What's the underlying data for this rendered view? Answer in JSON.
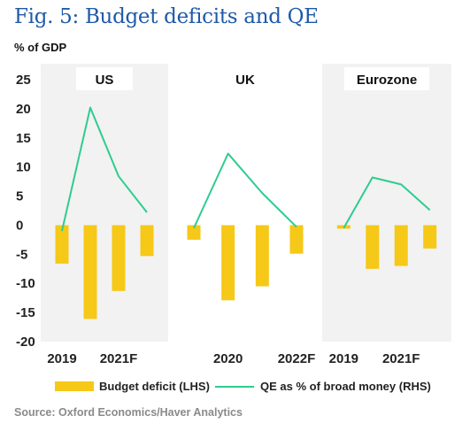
{
  "title": "Fig. 5: Budget deficits and QE",
  "unit_label": "% of GDP",
  "source": "Source: Oxford Economics/Haver Analytics",
  "colors": {
    "bar": "#f6c817",
    "line": "#2ecc8f",
    "panel_bg": "#f2f2f2",
    "title": "#1e5aa8"
  },
  "chart_data": {
    "type": "bar",
    "ylim": [
      -20,
      25
    ],
    "yticks": [
      25,
      20,
      15,
      10,
      5,
      0,
      -5,
      -10,
      -15,
      -20
    ],
    "ytick_labels": [
      "25",
      "20",
      "15",
      "10",
      "5",
      "0",
      "-5",
      "-10",
      "-15",
      "-20"
    ],
    "grid": false,
    "legend": "bottom",
    "legend_labels": {
      "bar": "Budget deficit (LHS)",
      "line": "QE as % of broad money (RHS)"
    },
    "panels": [
      {
        "label": "US",
        "categories": [
          "2019",
          "2020",
          "2021F",
          "2022F"
        ],
        "tick_labels": [
          "2019",
          "",
          "2021F",
          ""
        ],
        "budget_deficit": [
          -6.6,
          -16.1,
          -11.3,
          -5.3
        ],
        "qe": [
          -1.0,
          20.2,
          8.4,
          2.2
        ]
      },
      {
        "label": "UK",
        "categories": [
          "2019",
          "2020",
          "2021F",
          "2022F"
        ],
        "tick_labels": [
          "",
          "2020",
          "",
          "2022F"
        ],
        "budget_deficit": [
          -2.5,
          -12.9,
          -10.5,
          -4.9
        ],
        "qe": [
          -0.5,
          12.3,
          5.5,
          -0.3
        ]
      },
      {
        "label": "Eurozone",
        "categories": [
          "2019",
          "2020",
          "2021F",
          "2022F"
        ],
        "tick_labels": [
          "2019",
          "",
          "2021F",
          ""
        ],
        "budget_deficit": [
          -0.6,
          -7.5,
          -7.0,
          -4.0
        ],
        "qe": [
          -0.5,
          8.2,
          7.0,
          2.6
        ]
      }
    ]
  }
}
